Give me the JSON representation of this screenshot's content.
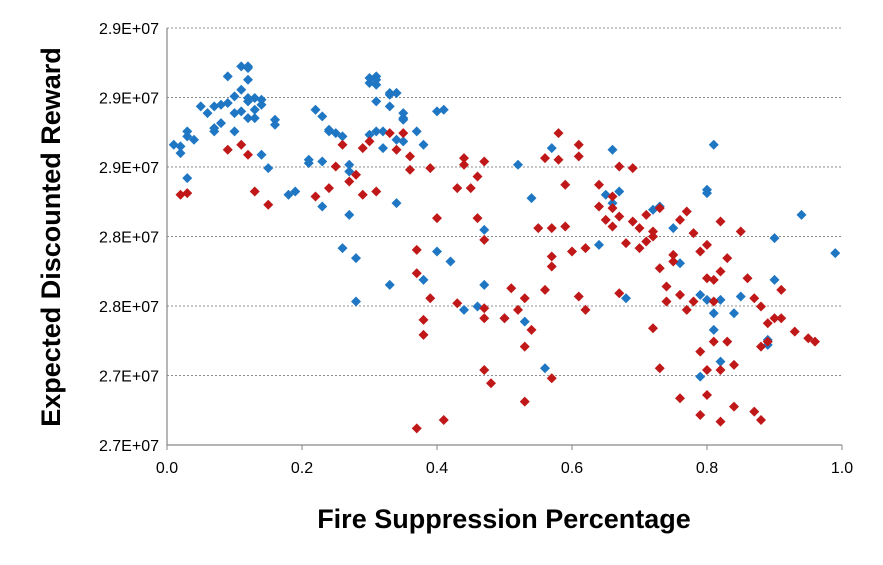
{
  "chart_data": {
    "type": "scatter",
    "title": "",
    "xlabel": "Fire Suppression Percentage",
    "ylabel": "Expected Discounted Reward",
    "xlim": [
      0,
      1
    ],
    "ylim": [
      27000000,
      29500000
    ],
    "x_ticks": [
      "0.0",
      "0.2",
      "0.4",
      "0.6",
      "0.8",
      "1.0"
    ],
    "y_ticks": [
      "2.7E+07",
      "2.7E+07",
      "2.8E+07",
      "2.8E+07",
      "2.9E+07",
      "2.9E+07",
      "2.9E+07"
    ],
    "grid": "horizontal dotted",
    "legend": "none",
    "series": [
      {
        "color": "#1f77c4",
        "marker": "diamond",
        "points": [
          [
            0.01,
            28800000
          ],
          [
            0.02,
            28750000
          ],
          [
            0.02,
            28790000
          ],
          [
            0.03,
            28880000
          ],
          [
            0.03,
            28850000
          ],
          [
            0.04,
            28830000
          ],
          [
            0.03,
            28600000
          ],
          [
            0.05,
            29030000
          ],
          [
            0.06,
            28990000
          ],
          [
            0.07,
            29030000
          ],
          [
            0.08,
            29040000
          ],
          [
            0.07,
            28880000
          ],
          [
            0.07,
            28900000
          ],
          [
            0.08,
            28930000
          ],
          [
            0.09,
            29210000
          ],
          [
            0.09,
            29050000
          ],
          [
            0.1,
            29090000
          ],
          [
            0.1,
            28990000
          ],
          [
            0.1,
            28880000
          ],
          [
            0.11,
            29270000
          ],
          [
            0.11,
            29130000
          ],
          [
            0.11,
            29000000
          ],
          [
            0.12,
            29260000
          ],
          [
            0.12,
            29270000
          ],
          [
            0.12,
            29190000
          ],
          [
            0.12,
            29080000
          ],
          [
            0.12,
            29060000
          ],
          [
            0.12,
            28960000
          ],
          [
            0.13,
            29080000
          ],
          [
            0.13,
            29010000
          ],
          [
            0.13,
            28960000
          ],
          [
            0.14,
            29070000
          ],
          [
            0.14,
            29040000
          ],
          [
            0.14,
            28740000
          ],
          [
            0.15,
            28660000
          ],
          [
            0.16,
            28950000
          ],
          [
            0.16,
            28920000
          ],
          [
            0.18,
            28500000
          ],
          [
            0.19,
            28520000
          ],
          [
            0.21,
            28690000
          ],
          [
            0.21,
            28710000
          ],
          [
            0.22,
            29010000
          ],
          [
            0.23,
            28700000
          ],
          [
            0.23,
            28970000
          ],
          [
            0.24,
            28890000
          ],
          [
            0.24,
            28880000
          ],
          [
            0.25,
            28870000
          ],
          [
            0.26,
            28850000
          ],
          [
            0.27,
            28640000
          ],
          [
            0.27,
            28680000
          ],
          [
            0.27,
            28380000
          ],
          [
            0.28,
            28120000
          ],
          [
            0.23,
            28430000
          ],
          [
            0.26,
            28180000
          ],
          [
            0.28,
            27860000
          ],
          [
            0.3,
            29200000
          ],
          [
            0.3,
            29170000
          ],
          [
            0.3,
            28860000
          ],
          [
            0.31,
            29210000
          ],
          [
            0.31,
            29190000
          ],
          [
            0.31,
            29160000
          ],
          [
            0.31,
            29060000
          ],
          [
            0.31,
            28880000
          ],
          [
            0.32,
            28880000
          ],
          [
            0.32,
            28780000
          ],
          [
            0.33,
            29110000
          ],
          [
            0.33,
            29100000
          ],
          [
            0.34,
            29110000
          ],
          [
            0.34,
            29110000
          ],
          [
            0.33,
            29030000
          ],
          [
            0.34,
            28830000
          ],
          [
            0.35,
            28990000
          ],
          [
            0.35,
            28960000
          ],
          [
            0.35,
            28950000
          ],
          [
            0.35,
            28820000
          ],
          [
            0.34,
            28450000
          ],
          [
            0.33,
            27960000
          ],
          [
            0.37,
            28880000
          ],
          [
            0.38,
            28800000
          ],
          [
            0.38,
            27990000
          ],
          [
            0.4,
            29000000
          ],
          [
            0.41,
            29010000
          ],
          [
            0.4,
            28160000
          ],
          [
            0.42,
            28100000
          ],
          [
            0.44,
            27810000
          ],
          [
            0.46,
            27830000
          ],
          [
            0.47,
            27960000
          ],
          [
            0.47,
            28290000
          ],
          [
            0.5,
            27760000
          ],
          [
            0.52,
            28680000
          ],
          [
            0.53,
            27740000
          ],
          [
            0.54,
            28480000
          ],
          [
            0.56,
            27460000
          ],
          [
            0.57,
            28780000
          ],
          [
            0.64,
            28200000
          ],
          [
            0.65,
            28500000
          ],
          [
            0.66,
            28450000
          ],
          [
            0.66,
            28770000
          ],
          [
            0.67,
            28520000
          ],
          [
            0.68,
            27880000
          ],
          [
            0.72,
            28410000
          ],
          [
            0.73,
            28430000
          ],
          [
            0.75,
            28300000
          ],
          [
            0.76,
            28090000
          ],
          [
            0.79,
            27900000
          ],
          [
            0.8,
            27870000
          ],
          [
            0.8,
            28510000
          ],
          [
            0.81,
            27790000
          ],
          [
            0.8,
            28530000
          ],
          [
            0.81,
            27690000
          ],
          [
            0.81,
            28800000
          ],
          [
            0.82,
            27870000
          ],
          [
            0.82,
            27500000
          ],
          [
            0.79,
            27410000
          ],
          [
            0.84,
            27790000
          ],
          [
            0.85,
            27890000
          ],
          [
            0.89,
            27630000
          ],
          [
            0.89,
            27600000
          ],
          [
            0.9,
            27990000
          ],
          [
            0.9,
            28240000
          ],
          [
            0.94,
            28380000
          ],
          [
            0.99,
            28150000
          ]
        ]
      },
      {
        "color": "#c01818",
        "marker": "diamond",
        "points": [
          [
            0.02,
            28500000
          ],
          [
            0.03,
            28510000
          ],
          [
            0.09,
            28770000
          ],
          [
            0.11,
            28800000
          ],
          [
            0.12,
            28740000
          ],
          [
            0.13,
            28520000
          ],
          [
            0.15,
            28440000
          ],
          [
            0.22,
            28490000
          ],
          [
            0.24,
            28540000
          ],
          [
            0.25,
            28670000
          ],
          [
            0.26,
            28800000
          ],
          [
            0.27,
            28580000
          ],
          [
            0.28,
            28620000
          ],
          [
            0.29,
            28780000
          ],
          [
            0.29,
            28500000
          ],
          [
            0.3,
            28820000
          ],
          [
            0.31,
            28520000
          ],
          [
            0.33,
            28870000
          ],
          [
            0.34,
            28770000
          ],
          [
            0.35,
            28870000
          ],
          [
            0.36,
            28730000
          ],
          [
            0.36,
            28650000
          ],
          [
            0.37,
            28170000
          ],
          [
            0.37,
            28030000
          ],
          [
            0.38,
            27660000
          ],
          [
            0.38,
            27750000
          ],
          [
            0.39,
            28660000
          ],
          [
            0.39,
            27880000
          ],
          [
            0.4,
            28360000
          ],
          [
            0.43,
            27850000
          ],
          [
            0.43,
            28540000
          ],
          [
            0.44,
            28680000
          ],
          [
            0.44,
            28720000
          ],
          [
            0.45,
            28540000
          ],
          [
            0.46,
            28610000
          ],
          [
            0.46,
            28360000
          ],
          [
            0.47,
            27820000
          ],
          [
            0.47,
            27760000
          ],
          [
            0.47,
            28230000
          ],
          [
            0.47,
            28700000
          ],
          [
            0.48,
            27370000
          ],
          [
            0.5,
            27760000
          ],
          [
            0.51,
            27940000
          ],
          [
            0.52,
            27810000
          ],
          [
            0.53,
            27880000
          ],
          [
            0.54,
            27690000
          ],
          [
            0.55,
            28300000
          ],
          [
            0.56,
            27930000
          ],
          [
            0.56,
            28720000
          ],
          [
            0.57,
            28070000
          ],
          [
            0.57,
            28130000
          ],
          [
            0.57,
            28300000
          ],
          [
            0.58,
            28710000
          ],
          [
            0.58,
            28870000
          ],
          [
            0.59,
            28310000
          ],
          [
            0.59,
            28560000
          ],
          [
            0.6,
            28160000
          ],
          [
            0.61,
            28730000
          ],
          [
            0.61,
            28800000
          ],
          [
            0.62,
            28180000
          ],
          [
            0.62,
            27810000
          ],
          [
            0.64,
            28560000
          ],
          [
            0.64,
            28430000
          ],
          [
            0.65,
            28350000
          ],
          [
            0.66,
            28310000
          ],
          [
            0.66,
            28490000
          ],
          [
            0.66,
            28420000
          ],
          [
            0.67,
            28670000
          ],
          [
            0.67,
            28370000
          ],
          [
            0.67,
            27910000
          ],
          [
            0.68,
            28210000
          ],
          [
            0.69,
            28340000
          ],
          [
            0.69,
            28660000
          ],
          [
            0.7,
            28300000
          ],
          [
            0.7,
            28180000
          ],
          [
            0.71,
            28220000
          ],
          [
            0.71,
            28380000
          ],
          [
            0.72,
            28280000
          ],
          [
            0.72,
            28250000
          ],
          [
            0.73,
            28420000
          ],
          [
            0.73,
            28060000
          ],
          [
            0.74,
            27860000
          ],
          [
            0.74,
            27950000
          ],
          [
            0.75,
            28100000
          ],
          [
            0.75,
            28140000
          ],
          [
            0.76,
            27900000
          ],
          [
            0.76,
            28350000
          ],
          [
            0.77,
            28400000
          ],
          [
            0.77,
            27810000
          ],
          [
            0.78,
            28270000
          ],
          [
            0.78,
            27860000
          ],
          [
            0.79,
            28160000
          ],
          [
            0.79,
            27560000
          ],
          [
            0.8,
            27450000
          ],
          [
            0.8,
            28000000
          ],
          [
            0.8,
            28200000
          ],
          [
            0.81,
            27860000
          ],
          [
            0.81,
            27990000
          ],
          [
            0.82,
            28040000
          ],
          [
            0.82,
            28340000
          ],
          [
            0.83,
            28120000
          ],
          [
            0.83,
            27620000
          ],
          [
            0.84,
            27480000
          ],
          [
            0.85,
            28280000
          ],
          [
            0.86,
            28000000
          ],
          [
            0.87,
            27880000
          ],
          [
            0.88,
            27830000
          ],
          [
            0.88,
            27590000
          ],
          [
            0.89,
            27620000
          ],
          [
            0.89,
            27730000
          ],
          [
            0.9,
            27760000
          ],
          [
            0.91,
            27760000
          ],
          [
            0.91,
            27930000
          ],
          [
            0.93,
            27680000
          ],
          [
            0.95,
            27640000
          ],
          [
            0.96,
            27620000
          ],
          [
            0.81,
            27620000
          ],
          [
            0.82,
            27450000
          ],
          [
            0.72,
            27700000
          ],
          [
            0.61,
            27890000
          ],
          [
            0.53,
            27590000
          ],
          [
            0.57,
            27400000
          ],
          [
            0.53,
            27260000
          ],
          [
            0.47,
            27450000
          ],
          [
            0.41,
            27150000
          ],
          [
            0.37,
            27100000
          ],
          [
            0.84,
            27230000
          ],
          [
            0.82,
            27140000
          ],
          [
            0.8,
            27300000
          ],
          [
            0.79,
            27180000
          ],
          [
            0.88,
            27150000
          ],
          [
            0.87,
            27200000
          ],
          [
            0.76,
            27280000
          ],
          [
            0.73,
            27460000
          ]
        ]
      }
    ]
  }
}
